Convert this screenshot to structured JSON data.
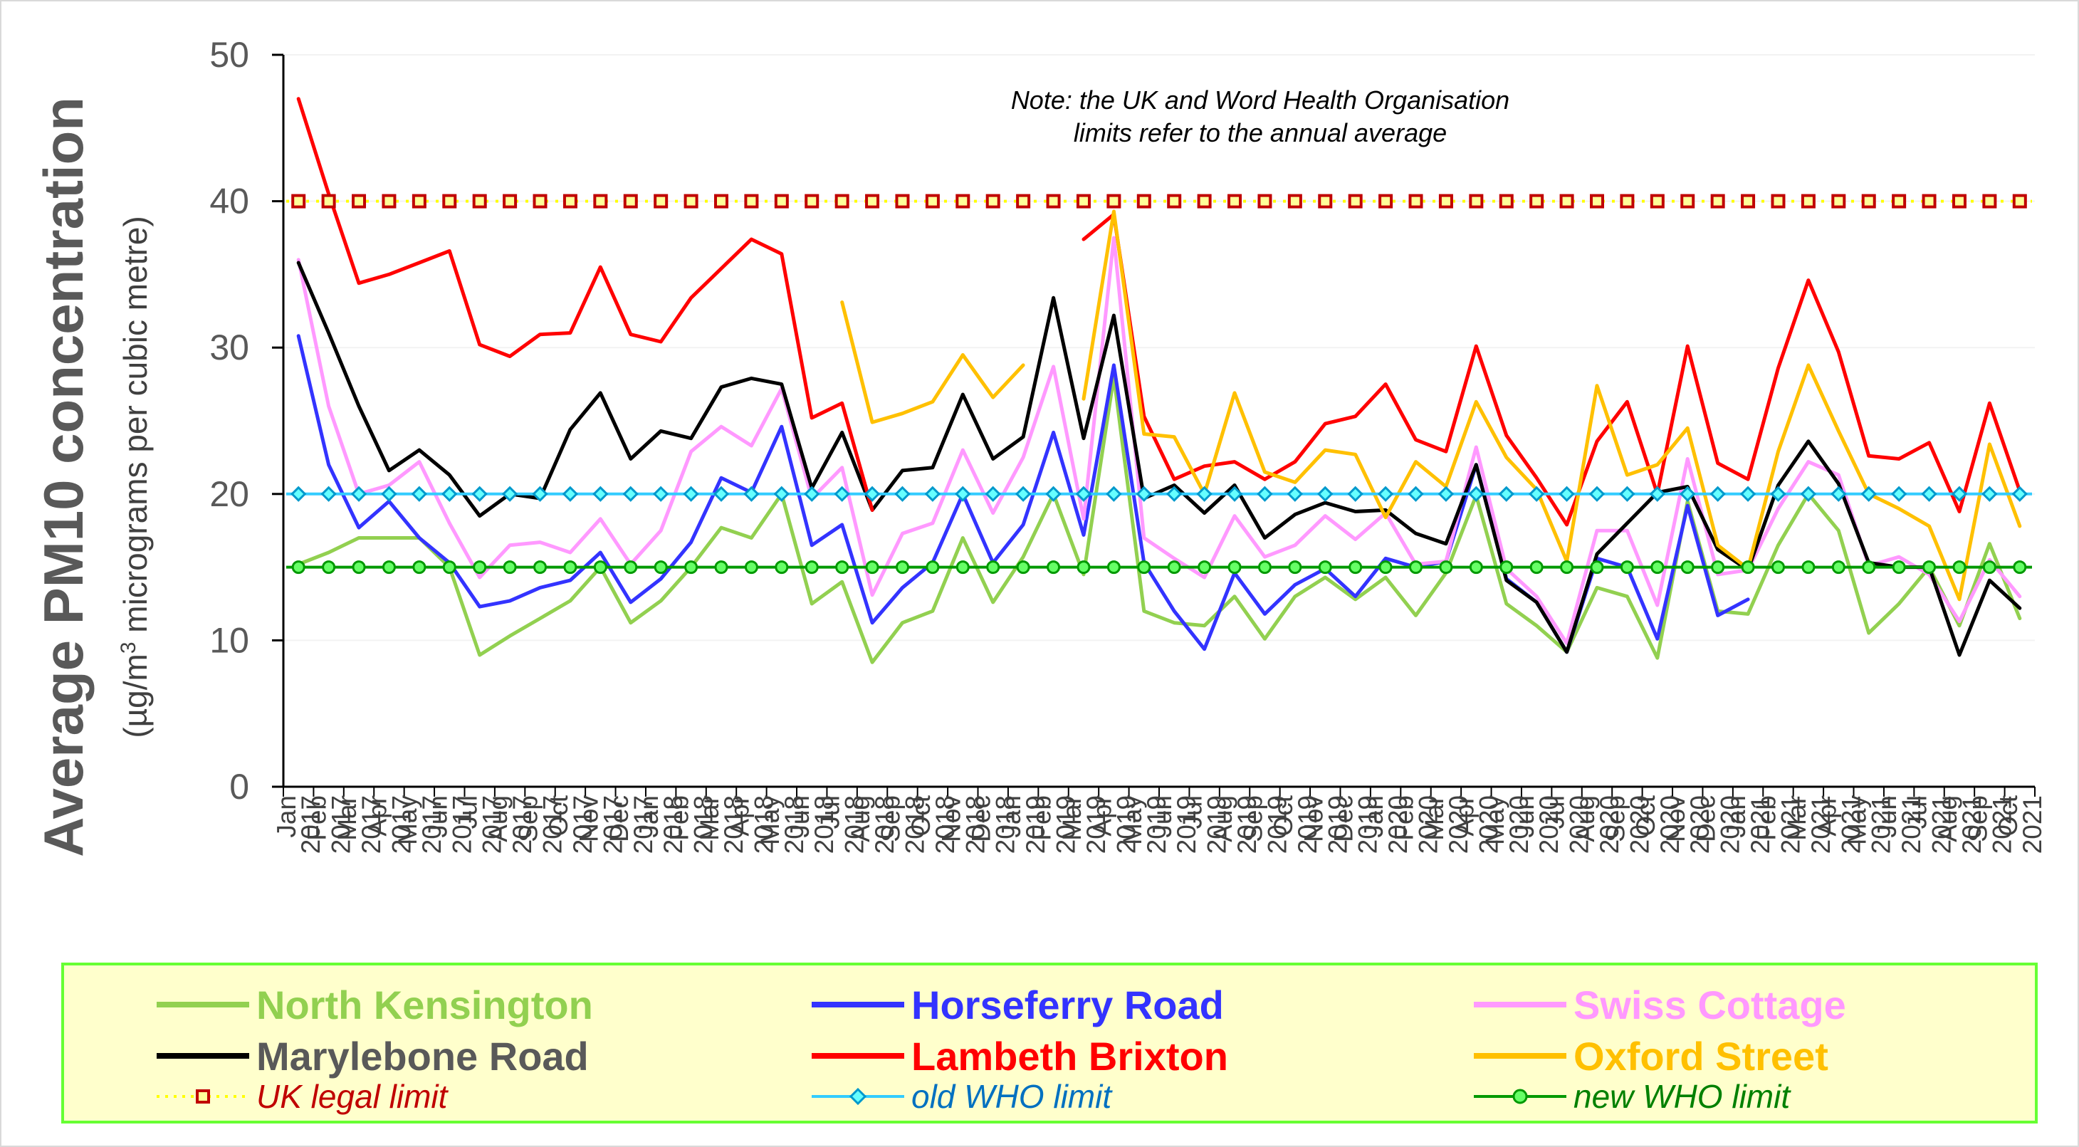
{
  "chart_data": {
    "type": "line",
    "title": "",
    "ylabel_main": "Average PM10 concentration",
    "ylabel_sub_prefix": "(µg/m",
    "ylabel_sub_sup": "3",
    "ylabel_sub_suffix": "  micrograms per cubic metre)",
    "ylim": [
      0,
      50
    ],
    "yticks": [
      "0",
      "10",
      "20",
      "30",
      "40",
      "50"
    ],
    "note_line1": "Note:  the UK and Word Health Organisation",
    "note_line2": "limits refer to the annual average",
    "legend_placement": "bottom",
    "categories": [
      "Jan 2017",
      "Feb 2017",
      "Mar 2017",
      "Apr 2017",
      "May 2017",
      "Jun 2017",
      "Jul 2017",
      "Aug 2017",
      "Sep 2017",
      "Oct 2017",
      "Nov 2017",
      "Dec 2017",
      "Jan 2018",
      "Feb 2018",
      "Mar 2018",
      "Apr 2018",
      "May 2018",
      "Jun 2018",
      "Jul 2018",
      "Aug 2018",
      "Sep 2018",
      "Oct 2018",
      "Nov 2018",
      "Dec 2018",
      "Jan 2019",
      "Feb 2019",
      "Mar 2019",
      "Apr 2019",
      "May 2019",
      "Jun 2019",
      "Jul 2019",
      "Aug 2019",
      "Sep 2019",
      "Oct 2019",
      "Nov 2019",
      "Dec 2019",
      "Jan 2020",
      "Feb 2020",
      "Mar 2020",
      "Apr 2020",
      "May 2020",
      "Jun 2020",
      "Jul 2020",
      "Aug 2020",
      "Sep 2020",
      "Oct 2020",
      "Nov 2020",
      "Dec 2020",
      "Jan 2021",
      "Feb 2021",
      "Mar 2021",
      "Apr 2021",
      "May 2021",
      "Jun 2021",
      "Jul 2021",
      "Aug 2021",
      "Sep 2021",
      "Oct 2021"
    ],
    "series": [
      {
        "name": "North Kensington",
        "color": "#92d050",
        "width": 5,
        "values": [
          15.2,
          16,
          17,
          17,
          17,
          15,
          9,
          10.3,
          11.5,
          12.7,
          15,
          11.2,
          12.7,
          15,
          17.7,
          17,
          20,
          12.5,
          14,
          8.5,
          11.2,
          12,
          17,
          12.6,
          15.7,
          20,
          14.5,
          28,
          12,
          11.2,
          11,
          13,
          10.1,
          13,
          14.3,
          12.8,
          14.3,
          11.7,
          14.6,
          19.9,
          12.5,
          11,
          9.2,
          13.6,
          13,
          8.8,
          19.5,
          12,
          11.8,
          16.5,
          20,
          17.5,
          10.5,
          12.5,
          15,
          11,
          16.6,
          11.5
        ]
      },
      {
        "name": "Horseferry Road",
        "color": "#3333ff",
        "width": 5,
        "values": [
          30.8,
          22,
          17.7,
          19.5,
          17,
          15.3,
          12.3,
          12.7,
          13.6,
          14.1,
          16,
          12.6,
          14.2,
          16.7,
          21.1,
          20.1,
          24.6,
          16.5,
          17.9,
          11.2,
          13.6,
          15.3,
          20,
          15.3,
          17.9,
          24.2,
          17.2,
          28.8,
          15.3,
          12,
          9.4,
          14.6,
          11.8,
          13.8,
          14.9,
          13,
          15.6,
          15,
          15.4,
          22,
          14.2,
          12.6,
          9.2,
          15.6,
          15,
          10.1,
          19.2,
          11.7,
          12.8,
          null,
          null,
          null,
          null,
          null,
          null,
          null,
          null,
          null
        ]
      },
      {
        "name": "Swiss Cottage",
        "color": "#ff99ff",
        "width": 5,
        "values": [
          36,
          26,
          20,
          20.6,
          22.2,
          18,
          14.3,
          16.5,
          16.7,
          16,
          18.3,
          15.2,
          17.5,
          22.9,
          24.6,
          23.3,
          27.2,
          19.7,
          21.8,
          13.1,
          17.3,
          18,
          23,
          18.7,
          22.5,
          28.7,
          18.3,
          37.5,
          17,
          15.6,
          14.3,
          18.5,
          15.7,
          16.5,
          18.5,
          16.9,
          18.7,
          15.2,
          15.4,
          23.2,
          14.9,
          13,
          9.8,
          17.5,
          17.5,
          12.4,
          22.4,
          14.5,
          14.8,
          19,
          22.2,
          21.3,
          15.1,
          15.7,
          14.5,
          11.3,
          15.5,
          13
        ]
      },
      {
        "name": "Marylebone Road",
        "color": "#000000",
        "width": 5,
        "values": [
          35.8,
          31,
          26,
          21.6,
          23,
          21.3,
          18.5,
          20,
          19.7,
          24.4,
          26.9,
          22.4,
          24.3,
          23.8,
          27.3,
          27.9,
          27.5,
          20.4,
          24.2,
          18.9,
          21.6,
          21.8,
          26.8,
          22.4,
          23.9,
          33.4,
          23.8,
          32.2,
          19.7,
          20.6,
          18.7,
          20.6,
          17,
          18.6,
          19.4,
          18.8,
          18.9,
          17.3,
          16.6,
          22,
          14.1,
          12.6,
          9.2,
          15.9,
          18,
          20.1,
          20.5,
          16.2,
          14.8,
          20.6,
          23.6,
          20.7,
          15.3,
          15,
          15,
          9,
          14.1,
          12.2
        ]
      },
      {
        "name": "Lambeth Brixton",
        "color": "#ff0000",
        "width": 5,
        "values": [
          47,
          40.5,
          34.4,
          35,
          35.8,
          36.6,
          30.2,
          29.4,
          30.9,
          31,
          35.5,
          30.9,
          30.4,
          33.4,
          35.4,
          37.4,
          36.4,
          25.2,
          26.2,
          18.9,
          null,
          null,
          null,
          null,
          null,
          null,
          37.4,
          39.1,
          25.3,
          21,
          21.9,
          22.2,
          21,
          22.2,
          24.8,
          25.3,
          27.5,
          23.7,
          22.9,
          30.1,
          24,
          21.1,
          17.9,
          23.6,
          26.3,
          20,
          30.1,
          22.1,
          21,
          28.6,
          34.6,
          29.7,
          22.6,
          22.4,
          23.5,
          18.8,
          26.2,
          20.2
        ]
      },
      {
        "name": "Oxford Street",
        "color": "#ffc000",
        "width": 5,
        "values": [
          null,
          null,
          null,
          null,
          null,
          null,
          null,
          null,
          null,
          null,
          null,
          null,
          null,
          null,
          null,
          null,
          null,
          null,
          33.1,
          24.9,
          25.5,
          26.3,
          29.5,
          26.6,
          28.8,
          null,
          26.5,
          39.3,
          24.1,
          23.9,
          20,
          26.9,
          21.5,
          20.8,
          23,
          22.7,
          18.4,
          22.2,
          20.5,
          26.3,
          22.5,
          20.3,
          15.4,
          27.4,
          21.3,
          22,
          24.5,
          16.5,
          14.9,
          22.9,
          28.8,
          24.3,
          20,
          19,
          17.8,
          12.8,
          23.4,
          17.8
        ]
      }
    ],
    "limits": [
      {
        "name": "UK legal limit",
        "value": 40,
        "color": "#ffff00",
        "marker": "square",
        "marker_fill": "#ffff99",
        "marker_edge": "#c00000",
        "dash": "4 10",
        "label_color": "#c00000"
      },
      {
        "name": "old WHO limit",
        "value": 20,
        "color": "#33ccff",
        "marker": "diamond",
        "marker_fill": "#66ffff",
        "marker_edge": "#0099cc",
        "dash": "",
        "label_color": "#0070c0"
      },
      {
        "name": "new WHO limit",
        "value": 15,
        "color": "#009900",
        "marker": "circle",
        "marker_fill": "#66ff66",
        "marker_edge": "#009900",
        "dash": "",
        "label_color": "#008000"
      }
    ]
  },
  "legend": {
    "north_kensington": "North Kensington",
    "horseferry_road": "Horseferry Road",
    "swiss_cottage": "Swiss Cottage",
    "marylebone_road": "Marylebone Road",
    "lambeth_brixton": "Lambeth Brixton",
    "oxford_street": "Oxford Street",
    "uk_legal_limit": "UK legal limit",
    "old_who_limit": "old WHO limit",
    "new_who_limit": "new WHO limit"
  }
}
